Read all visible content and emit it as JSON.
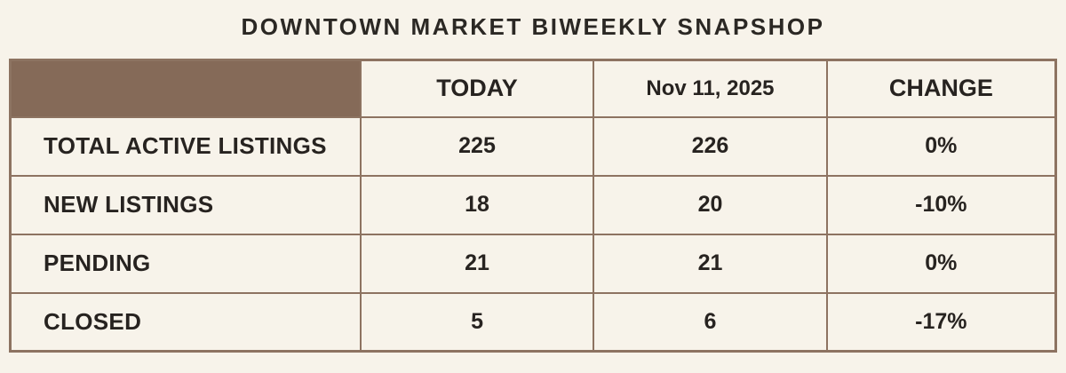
{
  "title": "DOWNTOWN MARKET BIWEEKLY SNAPSHOP",
  "colors": {
    "background": "#f7f3ea",
    "header_fill": "#856a58",
    "border": "#8d7361",
    "text": "#272320"
  },
  "table": {
    "columns": {
      "today": "TODAY",
      "prior": "Nov 11, 2025",
      "change": "CHANGE"
    },
    "rows": [
      {
        "label": "TOTAL ACTIVE LISTINGS",
        "today": "225",
        "prior": "226",
        "change": "0%"
      },
      {
        "label": "NEW LISTINGS",
        "today": "18",
        "prior": "20",
        "change": "-10%"
      },
      {
        "label": "PENDING",
        "today": "21",
        "prior": "21",
        "change": "0%"
      },
      {
        "label": "CLOSED",
        "today": "5",
        "prior": "6",
        "change": "-17%"
      }
    ]
  },
  "chart_data": {
    "type": "table",
    "title": "DOWNTOWN MARKET BIWEEKLY SNAPSHOP",
    "columns": [
      "",
      "TODAY",
      "Nov 11, 2025",
      "CHANGE"
    ],
    "rows": [
      [
        "TOTAL ACTIVE LISTINGS",
        225,
        226,
        "0%"
      ],
      [
        "NEW LISTINGS",
        18,
        20,
        "-10%"
      ],
      [
        "PENDING",
        21,
        21,
        "0%"
      ],
      [
        "CLOSED",
        5,
        6,
        "-17%"
      ]
    ]
  }
}
